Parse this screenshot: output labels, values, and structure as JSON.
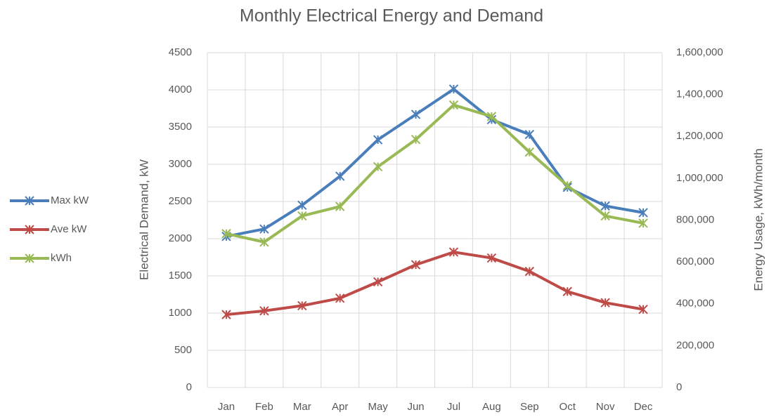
{
  "chart_data": {
    "type": "line",
    "title": "Monthly Electrical Energy and Demand",
    "ylabel": "Electrical Demand, kW",
    "y2label": "Energy Usage, kWh/month",
    "categories": [
      "Jan",
      "Feb",
      "Mar",
      "Apr",
      "May",
      "Jun",
      "Jul",
      "Aug",
      "Sep",
      "Oct",
      "Nov",
      "Dec"
    ],
    "series": [
      {
        "name": "Max kW",
        "color": "#4a7ebb",
        "values": [
          2030,
          2130,
          2450,
          2840,
          3330,
          3670,
          4010,
          3600,
          3400,
          2690,
          2440,
          2350
        ]
      },
      {
        "name": "Ave kW",
        "color": "#be4b48",
        "values": [
          980,
          1030,
          1100,
          1200,
          1420,
          1650,
          1820,
          1740,
          1560,
          1290,
          1140,
          1050
        ]
      },
      {
        "name": "kWh",
        "color": "#98b954",
        "axis": "y2",
        "values": [
          735000,
          695000,
          820000,
          865000,
          1055000,
          1185000,
          1350000,
          1295000,
          1125000,
          965000,
          820000,
          785000
        ]
      }
    ],
    "ylim": [
      0,
      4500
    ],
    "yticks": [
      0,
      500,
      1000,
      1500,
      2000,
      2500,
      3000,
      3500,
      4000,
      4500
    ],
    "y2lim": [
      0,
      1600000
    ],
    "y2ticks": [
      0,
      {
        "value": 200000,
        "label": "200,000"
      },
      {
        "value": 400000,
        "label": "400,000"
      },
      {
        "value": 600000,
        "label": "600,000"
      },
      {
        "value": 800000,
        "label": "800,000"
      },
      {
        "value": 1000000,
        "label": "1,000,000"
      },
      {
        "value": 1200000,
        "label": "1,200,000"
      },
      {
        "value": 1400000,
        "label": "1,400,000"
      },
      {
        "value": 1600000,
        "label": "1,600,000"
      }
    ],
    "grid": true,
    "legend": "left"
  }
}
